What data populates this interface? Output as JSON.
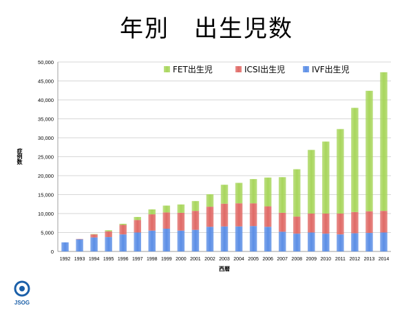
{
  "slide": {
    "title": "年別　出生児数"
  },
  "logo": {
    "text": "JSOG",
    "color": "#1a5fa8"
  },
  "chart_data": {
    "type": "bar",
    "stacked": true,
    "categories": [
      "1992",
      "1993",
      "1994",
      "1995",
      "1996",
      "1997",
      "1998",
      "1999",
      "2000",
      "2001",
      "2002",
      "2003",
      "2004",
      "2005",
      "2006",
      "2007",
      "2008",
      "2009",
      "2010",
      "2011",
      "2012",
      "2013",
      "2014"
    ],
    "series": [
      {
        "name": "IVF出生児",
        "color": "#5b8ee6",
        "values": [
          2400,
          3200,
          3700,
          3800,
          4500,
          5000,
          5500,
          6000,
          5500,
          5700,
          6500,
          6600,
          6600,
          6700,
          6500,
          5200,
          4700,
          5000,
          4700,
          4500,
          4800,
          4900,
          5000
        ]
      },
      {
        "name": "ICSI出生児",
        "color": "#e06a66",
        "values": [
          0,
          100,
          800,
          1500,
          2500,
          3300,
          4300,
          4300,
          4700,
          5000,
          5300,
          6000,
          6100,
          6000,
          5400,
          5000,
          4500,
          5000,
          5300,
          5500,
          5600,
          5700,
          5700
        ]
      },
      {
        "name": "FET出生児",
        "color": "#a8d65c",
        "values": [
          0,
          0,
          100,
          300,
          300,
          800,
          1300,
          1800,
          2200,
          2600,
          3300,
          5000,
          5400,
          6400,
          7600,
          9400,
          12500,
          16800,
          19000,
          22300,
          27500,
          31800,
          36600
        ]
      }
    ],
    "ylim": [
      0,
      50000
    ],
    "yticks": [
      "0",
      "5,000",
      "10,000",
      "15,000",
      "20,000",
      "25,000",
      "30,000",
      "35,000",
      "40,000",
      "45,000",
      "50,000"
    ],
    "ylabel": "症例数",
    "xlabel": "西暦",
    "grid": true,
    "legend": "top-right"
  }
}
